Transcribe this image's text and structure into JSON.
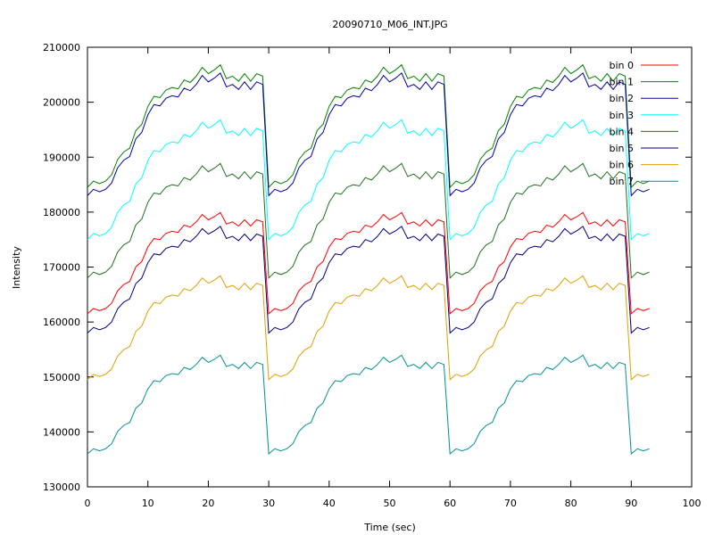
{
  "chart_data": {
    "type": "line",
    "title": "20090710_M06_INT.JPG",
    "xlabel": "Time (sec)",
    "ylabel": "Intensity",
    "xlim": [
      0,
      100
    ],
    "ylim": [
      130000,
      210000
    ],
    "xticks": [
      "0",
      "10",
      "20",
      "30",
      "40",
      "50",
      "60",
      "70",
      "80",
      "90",
      "100"
    ],
    "yticks": [
      "130000",
      "140000",
      "150000",
      "160000",
      "170000",
      "180000",
      "190000",
      "200000",
      "210000"
    ],
    "grid": false,
    "legend_position": "top-right",
    "x": [
      0,
      1,
      2,
      3,
      4,
      5,
      6,
      7,
      8,
      9,
      10,
      11,
      12,
      13,
      14,
      15,
      16,
      17,
      18,
      19,
      20,
      21,
      22,
      23,
      24,
      25,
      26,
      27,
      28,
      29,
      30,
      31,
      32,
      33,
      34,
      35,
      36,
      37,
      38,
      39,
      40,
      41,
      42,
      43,
      44,
      45,
      46,
      47,
      48,
      49,
      50,
      51,
      52,
      53,
      54,
      55,
      56,
      57,
      58,
      59,
      60,
      61,
      62,
      63,
      64,
      65,
      66,
      67,
      68,
      69,
      70,
      71,
      72,
      73,
      74,
      75,
      76,
      77,
      78,
      79,
      80,
      81,
      82,
      83,
      84,
      85,
      86,
      87,
      88,
      89,
      90,
      91,
      92,
      93
    ],
    "profile": [
      0,
      0.05,
      0.03,
      0.05,
      0.1,
      0.22,
      0.28,
      0.31,
      0.45,
      0.5,
      0.64,
      0.72,
      0.71,
      0.77,
      0.79,
      0.78,
      0.85,
      0.83,
      0.88,
      0.95,
      0.9,
      0.93,
      0.97,
      0.86,
      0.88,
      0.84,
      0.9,
      0.84,
      0.9,
      0.88,
      0,
      0.05,
      0.03,
      0.05,
      0.1,
      0.22,
      0.28,
      0.31,
      0.45,
      0.5,
      0.64,
      0.72,
      0.71,
      0.77,
      0.79,
      0.78,
      0.85,
      0.83,
      0.88,
      0.95,
      0.9,
      0.93,
      0.97,
      0.86,
      0.88,
      0.84,
      0.9,
      0.84,
      0.9,
      0.88,
      0,
      0.05,
      0.03,
      0.05,
      0.1,
      0.22,
      0.28,
      0.31,
      0.45,
      0.5,
      0.64,
      0.72,
      0.71,
      0.77,
      0.79,
      0.78,
      0.85,
      0.83,
      0.88,
      0.95,
      0.9,
      0.93,
      0.97,
      0.86,
      0.88,
      0.84,
      0.9,
      0.84,
      0.9,
      0.88,
      0,
      0.05,
      0.03,
      0.05
    ],
    "series": [
      {
        "name": "bin 0",
        "color": "#ff0000",
        "base": 161500,
        "amplitude": 19000
      },
      {
        "name": "bin 1",
        "color": "#008000",
        "base": 184500,
        "amplitude": 23000
      },
      {
        "name": "bin 2",
        "color": "#0000a0",
        "base": 183000,
        "amplitude": 23000
      },
      {
        "name": "bin 3",
        "color": "#00ffff",
        "base": 175000,
        "amplitude": 22500
      },
      {
        "name": "bin 4",
        "color": "#207020",
        "base": 168000,
        "amplitude": 21500
      },
      {
        "name": "bin 5",
        "color": "#000080",
        "base": 158000,
        "amplitude": 20000
      },
      {
        "name": "bin 6",
        "color": "#e0a000",
        "base": 149500,
        "amplitude": 19500
      },
      {
        "name": "bin 7",
        "color": "#009090",
        "base": 136000,
        "amplitude": 18500
      }
    ]
  }
}
